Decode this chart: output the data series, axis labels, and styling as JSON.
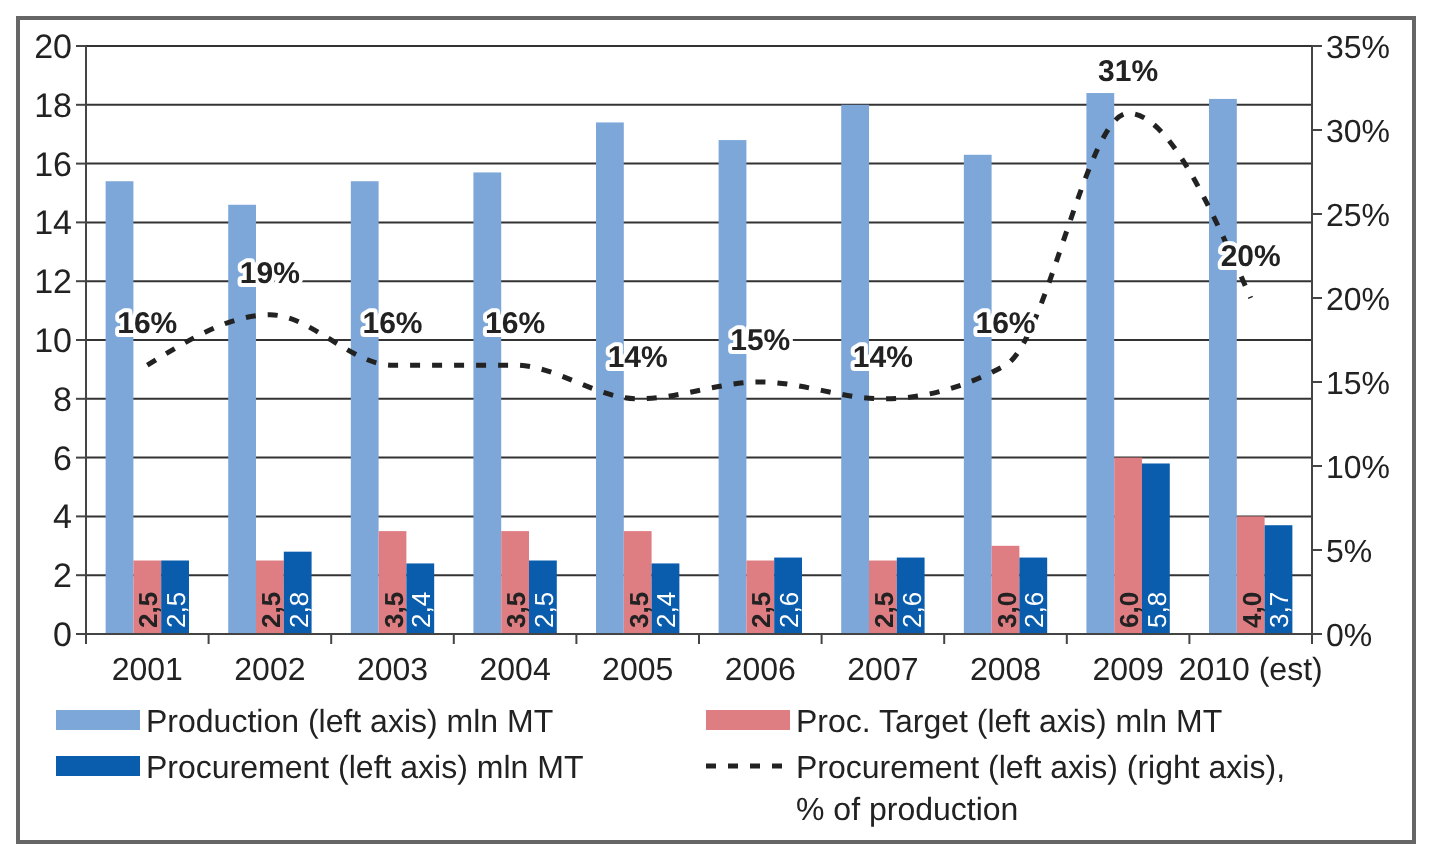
{
  "chart_data": {
    "type": "bar",
    "categories": [
      "2001",
      "2002",
      "2003",
      "2004",
      "2005",
      "2006",
      "2007",
      "2008",
      "2009",
      "2010 (est)"
    ],
    "series": [
      {
        "name": "Production (left axis) mln MT",
        "color": "#7da7d9",
        "values": [
          15.4,
          14.6,
          15.4,
          15.7,
          17.4,
          16.8,
          18.0,
          16.3,
          18.4,
          18.2
        ]
      },
      {
        "name": "Proc. Target (left axis) mln MT",
        "color": "#de7e83",
        "values": [
          2.5,
          2.5,
          3.5,
          3.5,
          3.5,
          2.5,
          2.5,
          3.0,
          6.0,
          4.0
        ],
        "value_labels": [
          "2,5",
          "2,5",
          "3,5",
          "3,5",
          "3,5",
          "2,5",
          "2,5",
          "3,0",
          "6,0",
          "4,0"
        ]
      },
      {
        "name": "Procurement (left axis) mln MT",
        "color": "#0a5cad",
        "values": [
          2.5,
          2.8,
          2.4,
          2.5,
          2.4,
          2.6,
          2.6,
          2.6,
          5.8,
          3.7
        ],
        "value_labels": [
          "2,5",
          "2,8",
          "2,4",
          "2,5",
          "2,4",
          "2,6",
          "2,6",
          "2,6",
          "5,8",
          "3,7"
        ]
      },
      {
        "name": "Procurement (left axis) (right axis), % of production",
        "type": "line",
        "axis": "y2",
        "color": "#222222",
        "line_style": "dashed",
        "values": [
          16,
          19,
          16,
          16,
          14,
          15,
          14,
          16,
          31,
          20
        ],
        "value_labels": [
          "16%",
          "19%",
          "16%",
          "16%",
          "14%",
          "15%",
          "14%",
          "16%",
          "31%",
          "20%"
        ]
      }
    ],
    "ylim": [
      0,
      20
    ],
    "yticks": [
      0,
      2,
      4,
      6,
      8,
      10,
      12,
      14,
      16,
      18,
      20
    ],
    "y2lim": [
      0,
      35
    ],
    "y2ticks": [
      {
        "value": 0,
        "label": "0%"
      },
      {
        "value": 5,
        "label": "5%"
      },
      {
        "value": 10,
        "label": "10%"
      },
      {
        "value": 15,
        "label": "15%"
      },
      {
        "value": 20,
        "label": "20%"
      },
      {
        "value": 25,
        "label": "25%"
      },
      {
        "value": 30,
        "label": "30%"
      },
      {
        "value": 35,
        "label": "35%"
      }
    ],
    "grid": "y",
    "legend": "bottom"
  }
}
